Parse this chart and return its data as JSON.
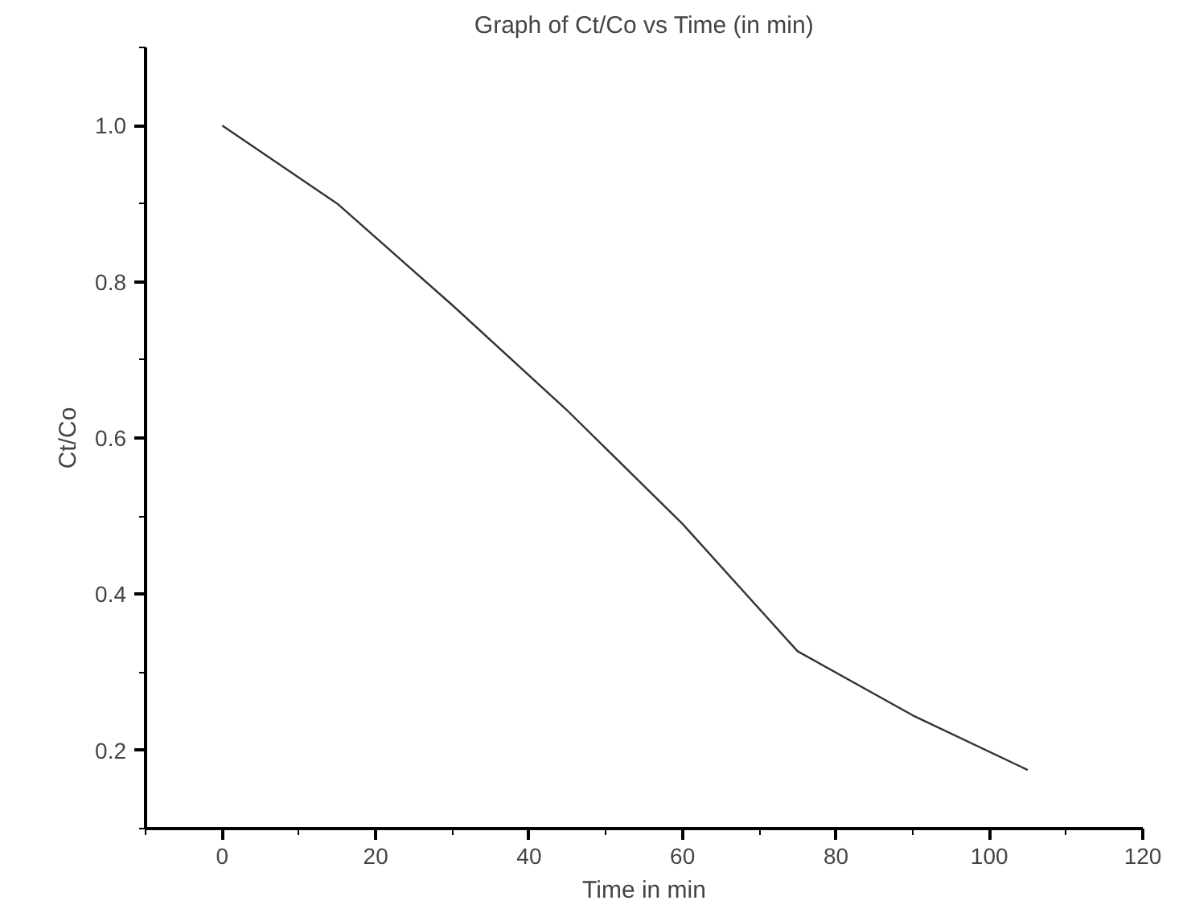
{
  "chart_data": {
    "type": "line",
    "title": "Graph of Ct/Co vs Time (in min)",
    "xlabel": "Time in min",
    "ylabel": "Ct/Co",
    "x": [
      0,
      15,
      30,
      45,
      60,
      75,
      90,
      105
    ],
    "series": [
      {
        "color": "#333333",
        "values": [
          1.0,
          0.9,
          0.77,
          0.635,
          0.49,
          0.327,
          0.245,
          0.175
        ]
      }
    ],
    "xlim": [
      -10,
      120
    ],
    "ylim": [
      0.1,
      1.1
    ],
    "xticks": [
      0,
      20,
      40,
      60,
      80,
      100,
      120
    ],
    "yticks": [
      {
        "value": 0.2,
        "label": "0.2"
      },
      {
        "value": 0.4,
        "label": "0.4"
      },
      {
        "value": 0.6,
        "label": "0.6"
      },
      {
        "value": 0.8,
        "label": "0.8"
      },
      {
        "value": 1.0,
        "label": "1.0"
      }
    ],
    "grid": false,
    "marker": "none",
    "line_style": "solid"
  }
}
